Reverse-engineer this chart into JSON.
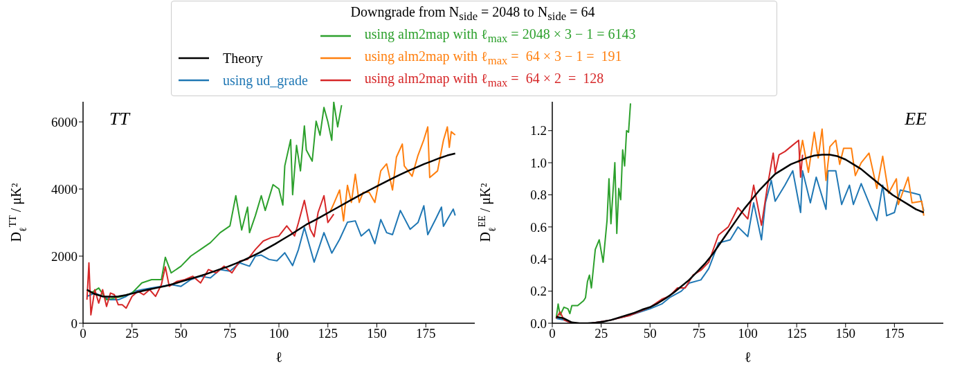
{
  "chart_data": [
    {
      "type": "line",
      "legend": "top",
      "legend_title": "Downgrade from N$_{side}$ = 2048 to N$_{side}$ = 64",
      "xlabel": "ℓ",
      "ylabel": "D$_{ℓ}$$^{TT}$ / μK²",
      "annotations": [
        "TT"
      ],
      "xlim": [
        0,
        200
      ],
      "xticks": [
        0,
        25,
        50,
        75,
        100,
        125,
        150,
        175
      ],
      "ylim": [
        0,
        6600
      ],
      "yticks": [
        0,
        2000,
        4000,
        6000
      ],
      "series": [
        {
          "name": "Theory",
          "color": "#000000",
          "x": [
            2,
            6,
            10,
            14,
            18,
            22,
            26,
            30,
            34,
            38,
            42,
            46,
            50,
            54,
            58,
            62,
            66,
            70,
            74,
            78,
            82,
            86,
            90,
            94,
            98,
            102,
            106,
            110,
            114,
            118,
            122,
            126,
            130,
            134,
            138,
            142,
            146,
            150,
            154,
            158,
            162,
            166,
            170,
            174,
            178,
            182,
            186,
            190
          ],
          "values": [
            1000,
            870,
            800,
            790,
            800,
            840,
            900,
            960,
            1010,
            1060,
            1110,
            1170,
            1240,
            1310,
            1380,
            1450,
            1530,
            1610,
            1690,
            1780,
            1880,
            1990,
            2100,
            2230,
            2360,
            2500,
            2640,
            2790,
            2940,
            3060,
            3190,
            3320,
            3450,
            3580,
            3710,
            3840,
            3960,
            4080,
            4200,
            4320,
            4430,
            4540,
            4640,
            4740,
            4830,
            4920,
            5000,
            5060
          ]
        },
        {
          "name": "using ud_grade",
          "color": "#1f77b4",
          "x": [
            2,
            6,
            10,
            14,
            18,
            22,
            26,
            30,
            35,
            40,
            45,
            50,
            55,
            60,
            65,
            70,
            75,
            80,
            85,
            88,
            91,
            95,
            99,
            103,
            107,
            110,
            113,
            118,
            123,
            127,
            131,
            135,
            139,
            142,
            146,
            149,
            152,
            155,
            158,
            162,
            167,
            171,
            174,
            176,
            180,
            183,
            184,
            189,
            190
          ],
          "values": [
            800,
            900,
            800,
            700,
            700,
            800,
            950,
            1000,
            1050,
            1100,
            1150,
            1100,
            1300,
            1400,
            1350,
            1600,
            1550,
            1800,
            1700,
            2000,
            2030,
            1900,
            1860,
            2100,
            1720,
            2200,
            2850,
            1820,
            2700,
            2090,
            2500,
            3010,
            3050,
            2600,
            2800,
            2370,
            3090,
            2700,
            2640,
            3360,
            2800,
            3000,
            3500,
            2640,
            3100,
            3460,
            2890,
            3400,
            3210
          ]
        },
        {
          "name": "using alm2map with ℓ$_{max}$ = 2048 × 3 − 1 = 6143",
          "color": "#2ca02c",
          "x": [
            2,
            4,
            8,
            12,
            16,
            20,
            25,
            30,
            35,
            40,
            42,
            45,
            50,
            55,
            60,
            65,
            70,
            75,
            78,
            81,
            84,
            85,
            88,
            91,
            93,
            97,
            100,
            102,
            103,
            106,
            107,
            109,
            111,
            113,
            114,
            117,
            119,
            121,
            123,
            125,
            127,
            128,
            130,
            132
          ],
          "values": [
            1000,
            900,
            1050,
            700,
            750,
            800,
            900,
            1200,
            1300,
            1300,
            1965,
            1500,
            1700,
            2000,
            2200,
            2400,
            2700,
            2900,
            3800,
            2780,
            3460,
            2700,
            3210,
            3800,
            3360,
            4130,
            4000,
            3520,
            4690,
            5470,
            3830,
            5300,
            4540,
            5880,
            5160,
            4830,
            6020,
            5600,
            6430,
            6000,
            5450,
            6590,
            5850,
            6500
          ]
        },
        {
          "name": "using alm2map with ℓ$_{max}$ =  64 × 3 − 1 =  191",
          "color": "#ff7f0e",
          "x": [
            126,
            128,
            131,
            133,
            135,
            137,
            139,
            141,
            143,
            146,
            149,
            152,
            155,
            158,
            160,
            163,
            164,
            168,
            171,
            174,
            176,
            177,
            181,
            184,
            186,
            187,
            188,
            190
          ],
          "values": [
            3300,
            3560,
            3970,
            3050,
            4110,
            3600,
            4440,
            3600,
            3900,
            3910,
            3600,
            4540,
            4750,
            3970,
            4950,
            5340,
            4690,
            4380,
            5000,
            5470,
            5850,
            4340,
            4540,
            5450,
            5850,
            5240,
            5710,
            5610
          ]
        },
        {
          "name": "using alm2map with ℓ$_{max}$ =  64 × 2  =  128",
          "color": "#d62728",
          "x": [
            2,
            3,
            4,
            6,
            8,
            10,
            12,
            14,
            16,
            18,
            20,
            22,
            25,
            28,
            31,
            34,
            37,
            40,
            42,
            44,
            48,
            52,
            56,
            60,
            64,
            68,
            72,
            76,
            80,
            84,
            88,
            92,
            96,
            100,
            104,
            108,
            110,
            113,
            116,
            118,
            120,
            123,
            125,
            128
          ],
          "values": [
            700,
            1800,
            250,
            1000,
            600,
            1000,
            500,
            900,
            850,
            550,
            550,
            450,
            800,
            950,
            850,
            1000,
            800,
            1150,
            1680,
            1100,
            1250,
            1300,
            1400,
            1200,
            1600,
            1500,
            1700,
            1500,
            1850,
            1900,
            2200,
            2450,
            2550,
            2600,
            2900,
            2600,
            3000,
            3660,
            2800,
            2580,
            3300,
            3800,
            3000,
            3250
          ]
        }
      ]
    },
    {
      "type": "line",
      "xlabel": "ℓ",
      "ylabel": "D$_{ℓ}$$^{EE}$ / μK²",
      "annotations": [
        "EE"
      ],
      "xlim": [
        0,
        200
      ],
      "xticks": [
        0,
        25,
        50,
        75,
        100,
        125,
        150,
        175
      ],
      "ylim": [
        0,
        1.38
      ],
      "yticks": [
        {
          "value": 0,
          "label": "0.0"
        },
        0.2,
        0.4,
        0.6,
        0.8,
        {
          "value": 1,
          "label": "1.0"
        },
        1.2
      ],
      "series": [
        {
          "color": "#000000",
          "x": [
            2,
            6,
            10,
            14,
            18,
            22,
            26,
            30,
            34,
            38,
            42,
            46,
            50,
            54,
            58,
            62,
            66,
            70,
            74,
            78,
            82,
            86,
            90,
            94,
            98,
            102,
            106,
            110,
            114,
            118,
            122,
            126,
            130,
            134,
            138,
            142,
            146,
            150,
            154,
            158,
            162,
            166,
            170,
            174,
            178,
            182,
            186,
            190
          ],
          "values": [
            0.04,
            0.03,
            0.005,
            0,
            0,
            0.003,
            0.01,
            0.02,
            0.035,
            0.05,
            0.065,
            0.085,
            0.1,
            0.125,
            0.155,
            0.19,
            0.23,
            0.27,
            0.32,
            0.37,
            0.43,
            0.5,
            0.57,
            0.64,
            0.71,
            0.77,
            0.83,
            0.88,
            0.93,
            0.96,
            0.99,
            1.01,
            1.03,
            1.045,
            1.05,
            1.05,
            1.04,
            1.02,
            0.99,
            0.96,
            0.92,
            0.88,
            0.84,
            0.8,
            0.77,
            0.74,
            0.71,
            0.69
          ]
        },
        {
          "color": "#1f77b4",
          "x": [
            2,
            6,
            10,
            20,
            30,
            40,
            50,
            56,
            60,
            66,
            70,
            76,
            80,
            85,
            91,
            95,
            100,
            103,
            107,
            109,
            112,
            114,
            119,
            123,
            127,
            128,
            132,
            135,
            140,
            141,
            145,
            148,
            152,
            154,
            158,
            163,
            166,
            169,
            171,
            175,
            178,
            185,
            188,
            190
          ],
          "values": [
            0.03,
            0.02,
            0,
            0,
            0.02,
            0.05,
            0.09,
            0.12,
            0.16,
            0.2,
            0.25,
            0.27,
            0.34,
            0.5,
            0.52,
            0.6,
            0.54,
            0.75,
            0.52,
            0.75,
            0.89,
            0.76,
            0.86,
            0.95,
            0.69,
            0.95,
            0.75,
            0.91,
            0.71,
            0.95,
            0.95,
            0.74,
            0.86,
            0.74,
            0.87,
            0.72,
            0.64,
            0.86,
            0.67,
            0.69,
            0.83,
            0.81,
            0.8,
            0.7
          ]
        },
        {
          "color": "#2ca02c",
          "x": [
            2,
            3,
            4,
            6,
            8,
            9,
            10,
            13,
            16,
            17,
            18,
            19,
            20,
            22,
            24,
            26,
            28,
            29,
            30,
            32,
            33,
            34,
            35,
            36,
            37,
            38,
            39,
            40
          ],
          "values": [
            0.03,
            0.12,
            0.05,
            0.1,
            0.09,
            0.06,
            0.11,
            0.11,
            0.14,
            0.16,
            0.26,
            0.3,
            0.22,
            0.46,
            0.52,
            0.38,
            0.64,
            0.9,
            0.62,
            1.0,
            0.56,
            0.84,
            0.77,
            1.08,
            0.98,
            1.2,
            1.19,
            1.37
          ]
        },
        {
          "color": "#ff7f0e",
          "x": [
            126,
            128,
            131,
            134,
            136,
            138,
            140,
            142,
            145,
            147,
            149,
            153,
            155,
            158,
            162,
            166,
            169,
            172,
            176,
            177,
            182,
            184,
            189,
            190
          ],
          "values": [
            1.0,
            1.14,
            0.94,
            1.19,
            1.03,
            1.21,
            0.89,
            1.1,
            1.14,
            0.99,
            1.09,
            1.09,
            0.92,
            1.0,
            1.06,
            0.84,
            1.04,
            0.81,
            0.9,
            0.74,
            0.91,
            0.75,
            0.76,
            0.67
          ]
        },
        {
          "color": "#d62728",
          "x": [
            2,
            4,
            6,
            8,
            10,
            14,
            20,
            30,
            40,
            50,
            56,
            60,
            64,
            68,
            72,
            76,
            80,
            85,
            90,
            95,
            100,
            103,
            107,
            110,
            113,
            114,
            116,
            119,
            123,
            126,
            127,
            128
          ],
          "values": [
            0.03,
            0.07,
            0.02,
            0.01,
            0,
            0,
            0,
            0.02,
            0.05,
            0.1,
            0.15,
            0.17,
            0.22,
            0.22,
            0.3,
            0.33,
            0.38,
            0.55,
            0.6,
            0.72,
            0.65,
            0.86,
            0.61,
            0.85,
            1.06,
            0.94,
            1.05,
            1.07,
            1.11,
            1.14,
            0.91,
            1.05
          ]
        }
      ]
    }
  ]
}
